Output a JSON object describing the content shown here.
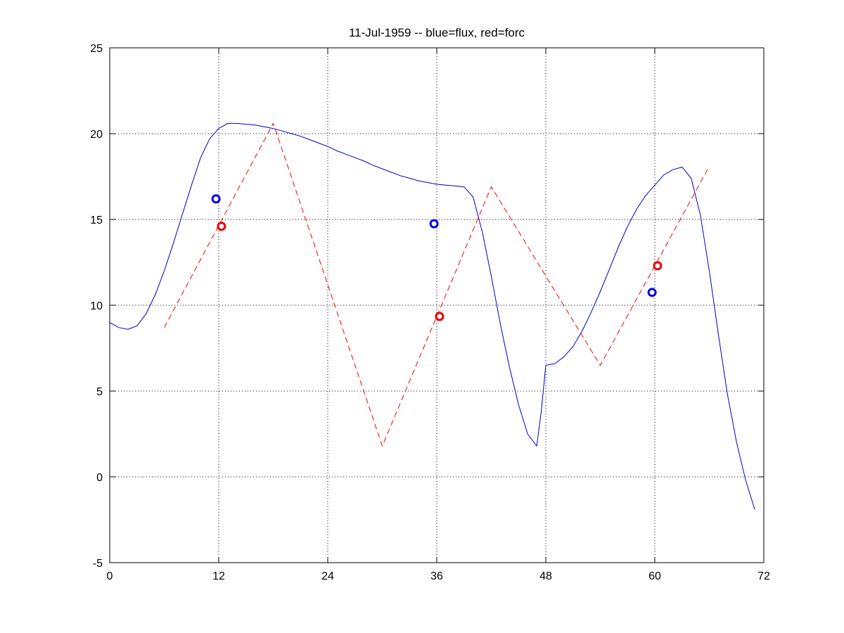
{
  "chart_data": {
    "type": "line",
    "title": "11-Jul-1959 -- blue=flux, red=forc",
    "xlim": [
      0,
      72
    ],
    "ylim": [
      -5,
      25
    ],
    "xticks": [
      0,
      12,
      24,
      36,
      48,
      60,
      72
    ],
    "yticks": [
      -5,
      0,
      5,
      10,
      15,
      20,
      25
    ],
    "grid": true,
    "series": [
      {
        "color": "#0000cc",
        "style": "solid",
        "x": [
          0,
          1,
          2,
          3,
          4,
          5,
          6,
          7,
          8,
          9,
          10,
          11,
          12,
          13,
          14,
          15,
          16,
          17,
          18,
          19,
          20,
          21,
          22,
          23,
          24,
          25,
          26,
          27,
          28,
          29,
          30,
          31,
          32,
          33,
          34,
          35,
          36,
          37,
          38,
          39,
          40,
          41,
          42,
          43,
          44,
          45,
          46,
          47,
          47.5,
          48,
          49,
          50,
          51,
          52,
          53,
          54,
          55,
          56,
          57,
          58,
          59,
          60,
          61,
          62,
          63,
          64,
          65,
          66,
          67,
          68,
          69,
          70,
          71
        ],
        "y": [
          9.0,
          8.7,
          8.6,
          8.8,
          9.5,
          10.6,
          12.0,
          13.6,
          15.3,
          17.0,
          18.6,
          19.7,
          20.3,
          20.6,
          20.6,
          20.55,
          20.5,
          20.4,
          20.3,
          20.15,
          20.0,
          19.85,
          19.65,
          19.45,
          19.25,
          19.0,
          18.8,
          18.6,
          18.4,
          18.15,
          17.95,
          17.75,
          17.55,
          17.4,
          17.25,
          17.15,
          17.05,
          17.0,
          16.95,
          16.9,
          16.3,
          14.3,
          11.7,
          8.9,
          6.4,
          4.2,
          2.5,
          1.8,
          3.8,
          6.5,
          6.6,
          7.0,
          7.6,
          8.5,
          9.6,
          10.8,
          12.1,
          13.4,
          14.6,
          15.6,
          16.4,
          17.0,
          17.6,
          17.9,
          18.05,
          17.4,
          15.3,
          12.0,
          8.3,
          4.8,
          2.0,
          -0.2,
          -1.9
        ]
      },
      {
        "color": "#ff0000",
        "style": "dashed",
        "x": [
          6,
          18,
          30,
          42,
          54,
          66
        ],
        "y": [
          8.7,
          20.6,
          1.8,
          16.9,
          6.5,
          18.1
        ]
      }
    ],
    "markers": [
      {
        "color": "#0000ee",
        "x": 11.7,
        "y": 16.2
      },
      {
        "color": "#ee0000",
        "x": 12.3,
        "y": 14.6
      },
      {
        "color": "#0000ee",
        "x": 35.7,
        "y": 14.75
      },
      {
        "color": "#ee0000",
        "x": 36.3,
        "y": 9.35
      },
      {
        "color": "#0000ee",
        "x": 59.7,
        "y": 10.75
      },
      {
        "color": "#ee0000",
        "x": 60.3,
        "y": 12.3
      }
    ]
  }
}
